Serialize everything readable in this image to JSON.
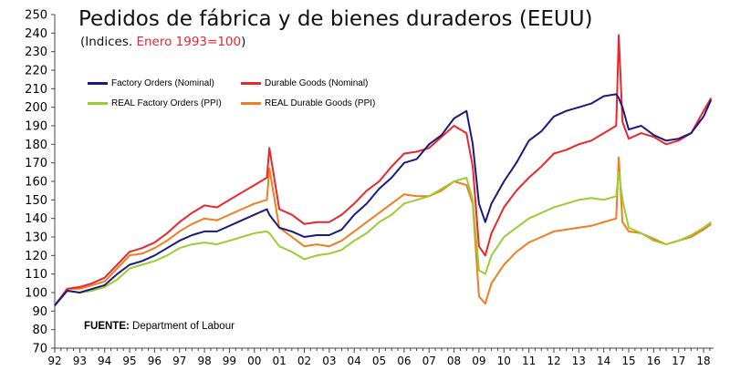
{
  "title": "Pedidos de fábrica y de bienes duraderos (EEUU)",
  "subtitle_prefix": "(Indices. ",
  "subtitle_highlight": "Enero 1993=100",
  "subtitle_suffix": ")",
  "source_label": "FUENTE:",
  "source_text": "Department of Labour",
  "colors": {
    "factory_nominal": "#1a1a7e",
    "durable_nominal": "#e8262c",
    "real_factory": "#9acd32",
    "real_durable": "#f07d1e",
    "highlight": "#e8262c"
  },
  "chart_data": {
    "type": "line",
    "ylim": [
      70,
      250
    ],
    "yticks": [
      70,
      80,
      90,
      100,
      110,
      120,
      130,
      140,
      150,
      160,
      170,
      180,
      190,
      200,
      210,
      220,
      230,
      240,
      250
    ],
    "xlim": [
      1992,
      2018.4
    ],
    "xtick_labels": [
      "92",
      "93",
      "94",
      "95",
      "96",
      "97",
      "98",
      "99",
      "00",
      "01",
      "02",
      "03",
      "04",
      "05",
      "06",
      "07",
      "08",
      "09",
      "10",
      "11",
      "12",
      "13",
      "14",
      "15",
      "16",
      "17",
      "18"
    ],
    "x": [
      1992,
      1992.5,
      1993,
      1993.5,
      1994,
      1994.5,
      1995,
      1995.5,
      1996,
      1996.5,
      1997,
      1997.5,
      1998,
      1998.5,
      1999,
      1999.5,
      2000,
      2000.5,
      2000.6,
      2001,
      2001.5,
      2002,
      2002.5,
      2003,
      2003.5,
      2004,
      2004.5,
      2005,
      2005.5,
      2006,
      2006.5,
      2007,
      2007.5,
      2008,
      2008.5,
      2008.75,
      2009,
      2009.25,
      2009.5,
      2010,
      2010.5,
      2011,
      2011.5,
      2012,
      2012.5,
      2013,
      2013.5,
      2014,
      2014.5,
      2014.6,
      2014.75,
      2015,
      2015.5,
      2016,
      2016.5,
      2017,
      2017.5,
      2018,
      2018.3
    ],
    "series": [
      {
        "name": "Factory Orders (Nominal)",
        "color_key": "factory_nominal",
        "values": [
          93,
          101,
          100,
          102,
          104,
          110,
          115,
          117,
          120,
          124,
          128,
          131,
          133,
          133,
          136,
          139,
          142,
          145,
          142,
          135,
          133,
          130,
          131,
          131,
          134,
          142,
          148,
          156,
          162,
          170,
          172,
          180,
          185,
          194,
          198,
          180,
          148,
          138,
          148,
          160,
          170,
          182,
          187,
          195,
          198,
          200,
          202,
          206,
          207,
          205,
          200,
          188,
          190,
          185,
          182,
          183,
          186,
          195,
          204
        ]
      },
      {
        "name": "Durable Goods (Nominal)",
        "color_key": "durable_nominal",
        "values": [
          93,
          102,
          103,
          105,
          108,
          115,
          122,
          124,
          127,
          132,
          138,
          143,
          147,
          146,
          150,
          154,
          158,
          162,
          178,
          145,
          142,
          137,
          138,
          138,
          142,
          148,
          155,
          160,
          168,
          175,
          176,
          178,
          184,
          190,
          186,
          168,
          125,
          120,
          132,
          146,
          155,
          162,
          168,
          175,
          177,
          180,
          182,
          186,
          190,
          239,
          192,
          183,
          186,
          184,
          180,
          182,
          186,
          198,
          205
        ]
      },
      {
        "name": "REAL Factory Orders (PPI)",
        "color_key": "real_factory",
        "values": [
          93,
          101,
          100,
          101,
          103,
          107,
          113,
          115,
          117,
          120,
          124,
          126,
          127,
          126,
          128,
          130,
          132,
          133,
          132,
          125,
          122,
          118,
          120,
          121,
          123,
          128,
          132,
          138,
          142,
          148,
          150,
          152,
          156,
          160,
          162,
          150,
          112,
          110,
          120,
          130,
          135,
          140,
          143,
          146,
          148,
          150,
          151,
          150,
          152,
          165,
          150,
          135,
          132,
          128,
          126,
          128,
          131,
          135,
          138
        ]
      },
      {
        "name": "REAL Durable Goods (PPI)",
        "color_key": "real_durable",
        "values": [
          93,
          102,
          102,
          104,
          106,
          113,
          120,
          121,
          124,
          128,
          133,
          137,
          140,
          139,
          142,
          145,
          148,
          150,
          167,
          135,
          130,
          125,
          126,
          125,
          128,
          133,
          138,
          143,
          148,
          153,
          152,
          152,
          155,
          160,
          158,
          148,
          98,
          94,
          105,
          115,
          122,
          127,
          130,
          133,
          134,
          135,
          136,
          138,
          140,
          173,
          138,
          133,
          132,
          129,
          126,
          128,
          130,
          134,
          137
        ]
      }
    ]
  }
}
